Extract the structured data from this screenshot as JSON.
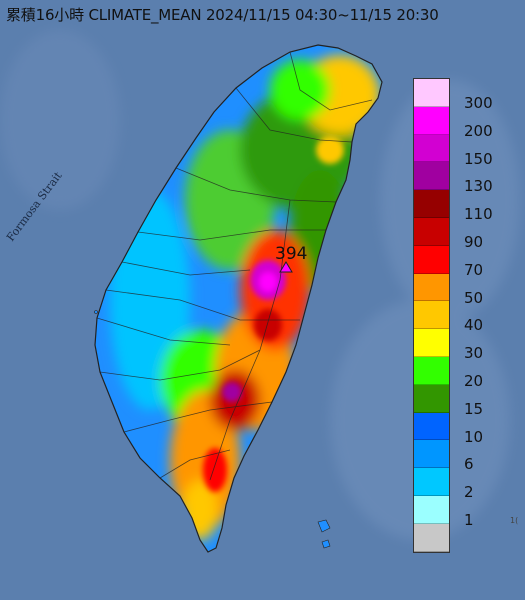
{
  "title": "累積16小時 CLIMATE_MEAN 2024/11/15 04:30~11/15 20:30",
  "strait_label": "Formosa Strait",
  "max_value_label": "394",
  "legend": [
    {
      "label": "300",
      "color": "#ffc8ff"
    },
    {
      "label": "200",
      "color": "#ff00ff"
    },
    {
      "label": "150",
      "color": "#d200d2"
    },
    {
      "label": "130",
      "color": "#a000a0"
    },
    {
      "label": "110",
      "color": "#960000"
    },
    {
      "label": "90",
      "color": "#c80000"
    },
    {
      "label": "70",
      "color": "#ff0000"
    },
    {
      "label": "50",
      "color": "#ff9600"
    },
    {
      "label": "40",
      "color": "#ffc800"
    },
    {
      "label": "30",
      "color": "#ffff00"
    },
    {
      "label": "20",
      "color": "#32ff00"
    },
    {
      "label": "15",
      "color": "#329600"
    },
    {
      "label": "10",
      "color": "#0064ff"
    },
    {
      "label": "6",
      "color": "#0096ff"
    },
    {
      "label": "2",
      "color": "#00c8ff"
    },
    {
      "label": "1",
      "color": "#9bffff"
    },
    {
      "label": "",
      "color": "#c8c8c8"
    }
  ],
  "corner_text": "1("
}
